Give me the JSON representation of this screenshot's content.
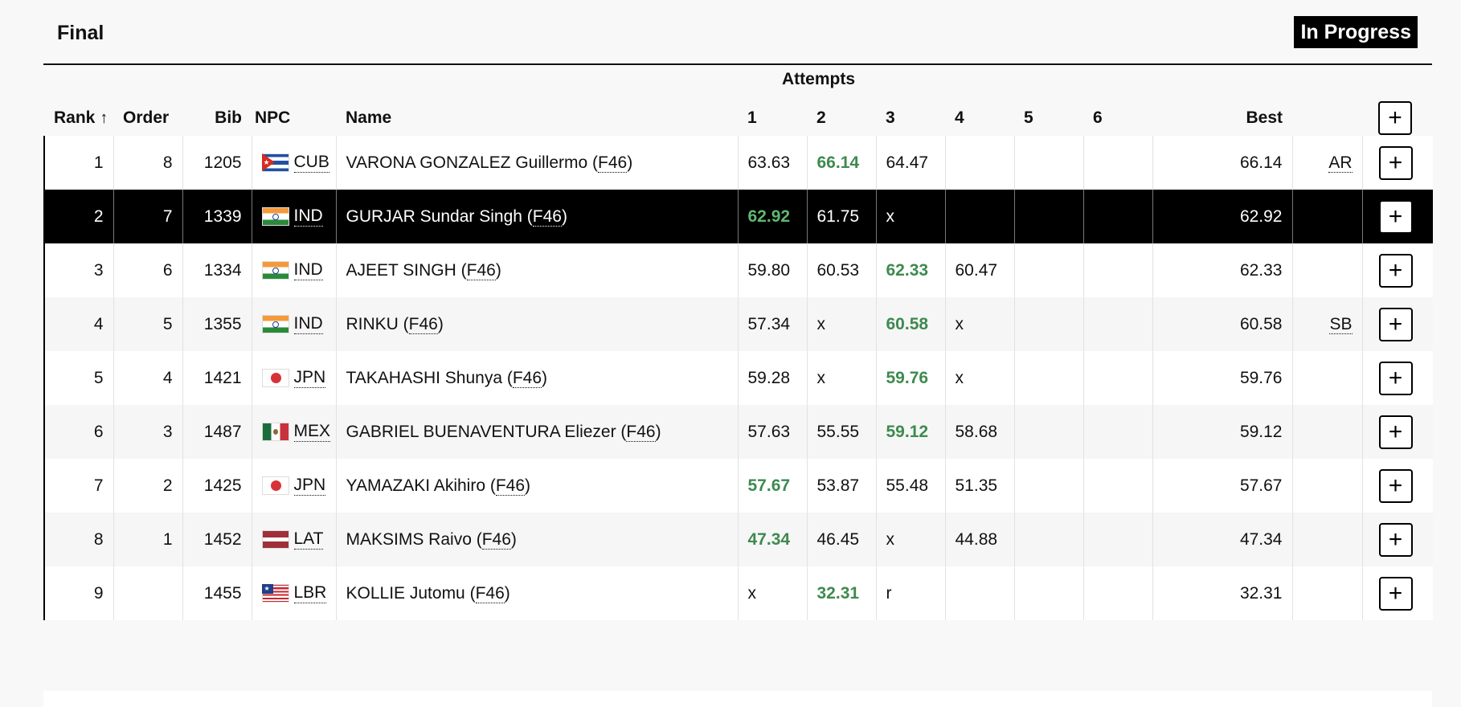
{
  "header": {
    "title": "Final",
    "status": "In Progress"
  },
  "table": {
    "attempts_label": "Attempts",
    "columns": {
      "rank": "Rank",
      "order": "Order",
      "bib": "Bib",
      "npc": "NPC",
      "name": "Name",
      "a1": "1",
      "a2": "2",
      "a3": "3",
      "a4": "4",
      "a5": "5",
      "a6": "6",
      "best": "Best"
    },
    "sort_icon": "↑",
    "plus_label": "+",
    "rows": [
      {
        "rank": "1",
        "order": "8",
        "bib": "1205",
        "flag": "cub",
        "npc": "CUB",
        "name": "VARONA GONZALEZ Guillermo",
        "class": "F46",
        "attempts": [
          "63.63",
          "66.14",
          "64.47",
          "",
          "",
          ""
        ],
        "best_index": 1,
        "best": "66.14",
        "record": "AR",
        "selected": false
      },
      {
        "rank": "2",
        "order": "7",
        "bib": "1339",
        "flag": "ind",
        "npc": "IND",
        "name": "GURJAR Sundar Singh",
        "class": "F46",
        "attempts": [
          "62.92",
          "61.75",
          "x",
          "",
          "",
          ""
        ],
        "best_index": 0,
        "best": "62.92",
        "record": "",
        "selected": true
      },
      {
        "rank": "3",
        "order": "6",
        "bib": "1334",
        "flag": "ind",
        "npc": "IND",
        "name": "AJEET SINGH",
        "class": "F46",
        "attempts": [
          "59.80",
          "60.53",
          "62.33",
          "60.47",
          "",
          ""
        ],
        "best_index": 2,
        "best": "62.33",
        "record": "",
        "selected": false
      },
      {
        "rank": "4",
        "order": "5",
        "bib": "1355",
        "flag": "ind",
        "npc": "IND",
        "name": "RINKU",
        "class": "F46",
        "attempts": [
          "57.34",
          "x",
          "60.58",
          "x",
          "",
          ""
        ],
        "best_index": 2,
        "best": "60.58",
        "record": "SB",
        "selected": false
      },
      {
        "rank": "5",
        "order": "4",
        "bib": "1421",
        "flag": "jpn",
        "npc": "JPN",
        "name": "TAKAHASHI Shunya",
        "class": "F46",
        "attempts": [
          "59.28",
          "x",
          "59.76",
          "x",
          "",
          ""
        ],
        "best_index": 2,
        "best": "59.76",
        "record": "",
        "selected": false
      },
      {
        "rank": "6",
        "order": "3",
        "bib": "1487",
        "flag": "mex",
        "npc": "MEX",
        "name": "GABRIEL BUENAVENTURA Eliezer",
        "class": "F46",
        "attempts": [
          "57.63",
          "55.55",
          "59.12",
          "58.68",
          "",
          ""
        ],
        "best_index": 2,
        "best": "59.12",
        "record": "",
        "selected": false
      },
      {
        "rank": "7",
        "order": "2",
        "bib": "1425",
        "flag": "jpn",
        "npc": "JPN",
        "name": "YAMAZAKI Akihiro",
        "class": "F46",
        "attempts": [
          "57.67",
          "53.87",
          "55.48",
          "51.35",
          "",
          ""
        ],
        "best_index": 0,
        "best": "57.67",
        "record": "",
        "selected": false
      },
      {
        "rank": "8",
        "order": "1",
        "bib": "1452",
        "flag": "lat",
        "npc": "LAT",
        "name": "MAKSIMS Raivo",
        "class": "F46",
        "attempts": [
          "47.34",
          "46.45",
          "x",
          "44.88",
          "",
          ""
        ],
        "best_index": 0,
        "best": "47.34",
        "record": "",
        "selected": false
      },
      {
        "rank": "9",
        "order": "",
        "bib": "1455",
        "flag": "lbr",
        "npc": "LBR",
        "name": "KOLLIE Jutomu",
        "class": "F46",
        "attempts": [
          "x",
          "32.31",
          "r",
          "",
          "",
          ""
        ],
        "best_index": 1,
        "best": "32.31",
        "record": "",
        "selected": false
      }
    ]
  },
  "colors": {
    "best_attempt": "#3e8a4f",
    "selected_row_bg": "#000000"
  }
}
